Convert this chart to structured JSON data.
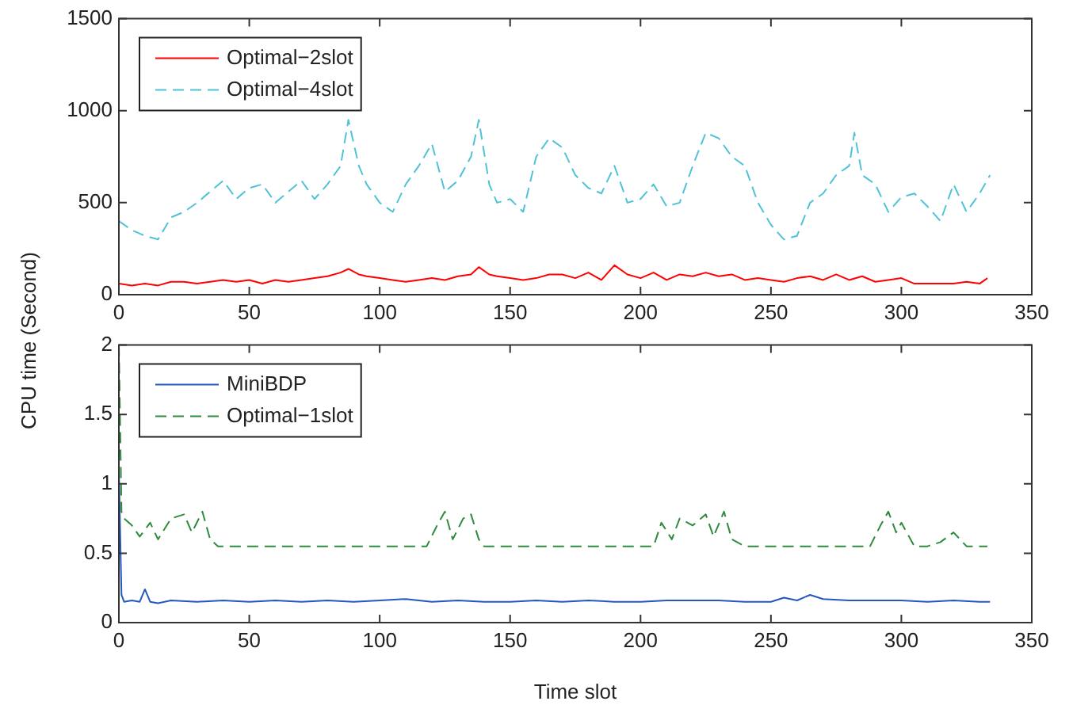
{
  "chart_data": [
    {
      "type": "line",
      "xlim": [
        0,
        350
      ],
      "xticks": [
        0,
        50,
        100,
        150,
        200,
        250,
        300,
        350
      ],
      "ylim": [
        0,
        1500
      ],
      "yticks": [
        0,
        500,
        1000,
        1500
      ],
      "grid": false,
      "legend": "top left",
      "marker": "none",
      "series": [
        {
          "name": "Optimal−2slot",
          "color": "#ff0000",
          "line_style": "solid",
          "x": [
            0,
            5,
            10,
            15,
            20,
            25,
            30,
            35,
            40,
            45,
            50,
            55,
            60,
            65,
            70,
            75,
            80,
            85,
            88,
            92,
            95,
            100,
            105,
            110,
            115,
            120,
            125,
            130,
            135,
            138,
            142,
            145,
            150,
            155,
            160,
            165,
            170,
            175,
            180,
            185,
            190,
            195,
            200,
            205,
            210,
            215,
            220,
            225,
            230,
            235,
            240,
            245,
            250,
            255,
            260,
            265,
            270,
            275,
            280,
            285,
            290,
            295,
            300,
            305,
            310,
            315,
            320,
            325,
            330,
            333
          ],
          "values": [
            60,
            50,
            60,
            50,
            70,
            70,
            60,
            70,
            80,
            70,
            80,
            60,
            80,
            70,
            80,
            90,
            100,
            120,
            140,
            110,
            100,
            90,
            80,
            70,
            80,
            90,
            80,
            100,
            110,
            150,
            110,
            100,
            90,
            80,
            90,
            110,
            110,
            90,
            120,
            80,
            160,
            110,
            90,
            120,
            80,
            110,
            100,
            120,
            100,
            110,
            80,
            90,
            80,
            70,
            90,
            100,
            80,
            110,
            80,
            100,
            70,
            80,
            90,
            60,
            60,
            60,
            60,
            70,
            60,
            90
          ]
        },
        {
          "name": "Optimal−4slot",
          "color": "#4fc3d6",
          "line_style": "dashed",
          "x": [
            0,
            5,
            10,
            15,
            20,
            25,
            30,
            35,
            40,
            45,
            50,
            55,
            60,
            65,
            70,
            75,
            80,
            85,
            88,
            92,
            95,
            100,
            105,
            110,
            115,
            120,
            125,
            130,
            135,
            138,
            142,
            145,
            150,
            155,
            160,
            165,
            170,
            175,
            180,
            185,
            190,
            195,
            200,
            205,
            210,
            215,
            220,
            225,
            230,
            235,
            240,
            245,
            250,
            255,
            260,
            265,
            270,
            275,
            280,
            282,
            285,
            290,
            295,
            300,
            305,
            310,
            315,
            320,
            325,
            330,
            334
          ],
          "values": [
            400,
            350,
            320,
            300,
            420,
            450,
            500,
            560,
            620,
            520,
            580,
            600,
            500,
            560,
            620,
            520,
            600,
            700,
            950,
            700,
            600,
            500,
            450,
            600,
            700,
            820,
            560,
            620,
            750,
            950,
            600,
            500,
            520,
            450,
            750,
            850,
            800,
            650,
            580,
            550,
            700,
            500,
            520,
            600,
            480,
            500,
            700,
            880,
            850,
            750,
            700,
            500,
            380,
            300,
            320,
            500,
            550,
            650,
            700,
            880,
            650,
            600,
            450,
            530,
            550,
            480,
            400,
            600,
            450,
            550,
            650
          ]
        }
      ]
    },
    {
      "type": "line",
      "xlabel": "Time slot",
      "ylabel": "CPU time (Second)",
      "xlim": [
        0,
        350
      ],
      "xticks": [
        0,
        50,
        100,
        150,
        200,
        250,
        300,
        350
      ],
      "ylim": [
        0,
        2
      ],
      "yticks": [
        0,
        0.5,
        1,
        1.5,
        2
      ],
      "grid": false,
      "legend": "top left",
      "marker": "none",
      "series": [
        {
          "name": "MiniBDP",
          "color": "#2458c0",
          "line_style": "solid",
          "x": [
            0,
            1,
            2,
            5,
            8,
            10,
            12,
            15,
            20,
            30,
            40,
            50,
            60,
            70,
            80,
            90,
            100,
            110,
            120,
            130,
            140,
            150,
            160,
            170,
            180,
            190,
            200,
            210,
            220,
            230,
            240,
            250,
            255,
            260,
            265,
            270,
            280,
            290,
            300,
            310,
            320,
            330,
            334
          ],
          "values": [
            1.1,
            0.2,
            0.15,
            0.16,
            0.15,
            0.24,
            0.15,
            0.14,
            0.16,
            0.15,
            0.16,
            0.15,
            0.16,
            0.15,
            0.16,
            0.15,
            0.16,
            0.17,
            0.15,
            0.16,
            0.15,
            0.15,
            0.16,
            0.15,
            0.16,
            0.15,
            0.15,
            0.16,
            0.16,
            0.16,
            0.15,
            0.15,
            0.18,
            0.16,
            0.2,
            0.17,
            0.16,
            0.16,
            0.16,
            0.15,
            0.16,
            0.15,
            0.15
          ]
        },
        {
          "name": "Optimal−1slot",
          "color": "#2e8b3e",
          "line_style": "dashed",
          "x": [
            0,
            1,
            2,
            5,
            8,
            12,
            15,
            20,
            25,
            28,
            32,
            35,
            38,
            40,
            60,
            80,
            100,
            118,
            122,
            125,
            128,
            132,
            135,
            138,
            140,
            160,
            180,
            200,
            205,
            208,
            212,
            215,
            220,
            225,
            228,
            232,
            235,
            240,
            260,
            280,
            288,
            292,
            295,
            298,
            300,
            305,
            310,
            315,
            320,
            325,
            330,
            333
          ],
          "values": [
            2,
            0.8,
            0.75,
            0.7,
            0.62,
            0.72,
            0.6,
            0.75,
            0.78,
            0.65,
            0.8,
            0.6,
            0.55,
            0.55,
            0.55,
            0.55,
            0.55,
            0.55,
            0.7,
            0.8,
            0.6,
            0.75,
            0.78,
            0.6,
            0.55,
            0.55,
            0.55,
            0.55,
            0.55,
            0.72,
            0.6,
            0.75,
            0.7,
            0.78,
            0.62,
            0.8,
            0.6,
            0.55,
            0.55,
            0.55,
            0.55,
            0.7,
            0.8,
            0.65,
            0.72,
            0.55,
            0.55,
            0.58,
            0.65,
            0.55,
            0.55,
            0.55
          ]
        }
      ]
    }
  ]
}
